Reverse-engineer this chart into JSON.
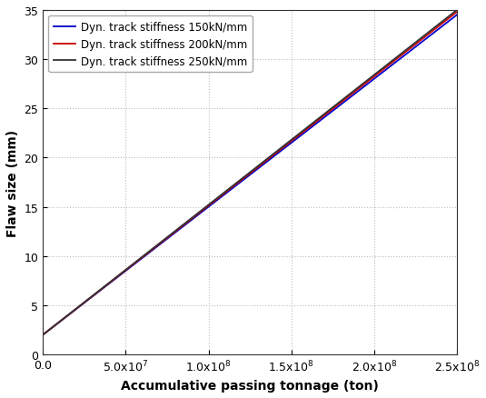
{
  "title": "",
  "xlabel": "Accumulative passing tonnage (ton)",
  "ylabel": "Flaw size (mm)",
  "xlim": [
    0,
    250000000.0
  ],
  "ylim": [
    0,
    35
  ],
  "xticks": [
    0.0,
    50000000.0,
    100000000.0,
    150000000.0,
    200000000.0,
    250000000.0
  ],
  "yticks": [
    0,
    5,
    10,
    15,
    20,
    25,
    30,
    35
  ],
  "lines": [
    {
      "label": "Dyn. track stiffness 150kN/mm",
      "color": "#0000cc",
      "y_start": 2.0,
      "y_end": 34.5,
      "linewidth": 1.3
    },
    {
      "label": "Dyn. track stiffness 200kN/mm",
      "color": "#cc0000",
      "y_start": 2.0,
      "y_end": 34.8,
      "linewidth": 1.3
    },
    {
      "label": "Dyn. track stiffness 250kN/mm",
      "color": "#333333",
      "y_start": 2.0,
      "y_end": 35.0,
      "linewidth": 1.3
    }
  ],
  "grid_color": "#bbbbbb",
  "grid_linestyle": ":",
  "legend_fontsize": 8.5,
  "axis_label_fontsize": 10,
  "tick_fontsize": 9,
  "background_color": "#ffffff",
  "figure_background": "#ffffff"
}
